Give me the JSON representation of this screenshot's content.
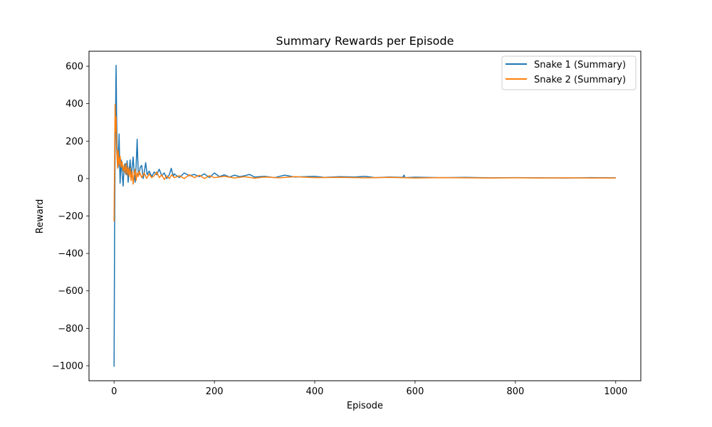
{
  "chart_data": {
    "type": "line",
    "title": "Summary Rewards per Episode",
    "xlabel": "Episode",
    "ylabel": "Reward",
    "xlim": [
      -50,
      1050
    ],
    "ylim": [
      -1080,
      680
    ],
    "xticks": [
      0,
      200,
      400,
      600,
      800,
      1000
    ],
    "yticks": [
      -1000,
      -800,
      -600,
      -400,
      -200,
      0,
      200,
      400,
      600
    ],
    "ytick_labels": [
      "−1000",
      "−800",
      "−600",
      "−400",
      "−200",
      "0",
      "200",
      "400",
      "600"
    ],
    "grid": false,
    "legend_position": "top-right",
    "series": [
      {
        "name": "Snake 1 (Summary)",
        "color": "#1f77b4",
        "points": [
          [
            0,
            -1005
          ],
          [
            1,
            -300
          ],
          [
            2,
            150
          ],
          [
            3,
            350
          ],
          [
            4,
            605
          ],
          [
            5,
            340
          ],
          [
            6,
            180
          ],
          [
            7,
            120
          ],
          [
            8,
            60
          ],
          [
            9,
            140
          ],
          [
            10,
            238
          ],
          [
            11,
            90
          ],
          [
            12,
            -25
          ],
          [
            14,
            100
          ],
          [
            16,
            30
          ],
          [
            18,
            -40
          ],
          [
            20,
            60
          ],
          [
            22,
            80
          ],
          [
            24,
            20
          ],
          [
            26,
            95
          ],
          [
            28,
            -20
          ],
          [
            30,
            40
          ],
          [
            32,
            100
          ],
          [
            34,
            10
          ],
          [
            36,
            60
          ],
          [
            38,
            115
          ],
          [
            40,
            30
          ],
          [
            42,
            -20
          ],
          [
            44,
            70
          ],
          [
            46,
            210
          ],
          [
            48,
            40
          ],
          [
            50,
            20
          ],
          [
            52,
            60
          ],
          [
            55,
            70
          ],
          [
            58,
            0
          ],
          [
            60,
            30
          ],
          [
            63,
            85
          ],
          [
            66,
            20
          ],
          [
            70,
            40
          ],
          [
            75,
            10
          ],
          [
            80,
            35
          ],
          [
            85,
            20
          ],
          [
            90,
            50
          ],
          [
            95,
            15
          ],
          [
            100,
            30
          ],
          [
            105,
            0
          ],
          [
            110,
            20
          ],
          [
            114,
            55
          ],
          [
            118,
            10
          ],
          [
            120,
            25
          ],
          [
            130,
            5
          ],
          [
            140,
            30
          ],
          [
            150,
            15
          ],
          [
            160,
            22
          ],
          [
            170,
            10
          ],
          [
            180,
            25
          ],
          [
            190,
            5
          ],
          [
            200,
            30
          ],
          [
            210,
            10
          ],
          [
            220,
            20
          ],
          [
            230,
            8
          ],
          [
            240,
            18
          ],
          [
            250,
            10
          ],
          [
            260,
            15
          ],
          [
            270,
            22
          ],
          [
            280,
            8
          ],
          [
            300,
            12
          ],
          [
            320,
            5
          ],
          [
            340,
            18
          ],
          [
            360,
            8
          ],
          [
            380,
            10
          ],
          [
            400,
            12
          ],
          [
            420,
            6
          ],
          [
            450,
            10
          ],
          [
            480,
            8
          ],
          [
            500,
            12
          ],
          [
            520,
            5
          ],
          [
            550,
            8
          ],
          [
            575,
            6
          ],
          [
            578,
            18
          ],
          [
            580,
            5
          ],
          [
            600,
            7
          ],
          [
            650,
            5
          ],
          [
            700,
            6
          ],
          [
            750,
            4
          ],
          [
            800,
            5
          ],
          [
            850,
            4
          ],
          [
            900,
            3
          ],
          [
            950,
            5
          ],
          [
            1000,
            4
          ]
        ]
      },
      {
        "name": "Snake 2 (Summary)",
        "color": "#ff7f0e",
        "points": [
          [
            0,
            -230
          ],
          [
            1,
            100
          ],
          [
            2,
            395
          ],
          [
            3,
            250
          ],
          [
            4,
            330
          ],
          [
            5,
            160
          ],
          [
            6,
            110
          ],
          [
            7,
            55
          ],
          [
            8,
            150
          ],
          [
            10,
            70
          ],
          [
            12,
            120
          ],
          [
            14,
            60
          ],
          [
            16,
            90
          ],
          [
            18,
            40
          ],
          [
            20,
            70
          ],
          [
            22,
            30
          ],
          [
            24,
            80
          ],
          [
            26,
            20
          ],
          [
            28,
            60
          ],
          [
            30,
            10
          ],
          [
            32,
            55
          ],
          [
            34,
            -10
          ],
          [
            36,
            40
          ],
          [
            38,
            -30
          ],
          [
            40,
            20
          ],
          [
            42,
            50
          ],
          [
            44,
            -10
          ],
          [
            46,
            30
          ],
          [
            48,
            10
          ],
          [
            50,
            40
          ],
          [
            55,
            5
          ],
          [
            60,
            30
          ],
          [
            65,
            0
          ],
          [
            70,
            25
          ],
          [
            75,
            5
          ],
          [
            80,
            15
          ],
          [
            85,
            35
          ],
          [
            90,
            5
          ],
          [
            95,
            20
          ],
          [
            100,
            -5
          ],
          [
            105,
            15
          ],
          [
            110,
            0
          ],
          [
            115,
            20
          ],
          [
            120,
            5
          ],
          [
            130,
            15
          ],
          [
            140,
            0
          ],
          [
            150,
            20
          ],
          [
            160,
            5
          ],
          [
            170,
            18
          ],
          [
            180,
            0
          ],
          [
            190,
            15
          ],
          [
            200,
            5
          ],
          [
            220,
            12
          ],
          [
            240,
            3
          ],
          [
            260,
            10
          ],
          [
            280,
            2
          ],
          [
            300,
            8
          ],
          [
            330,
            4
          ],
          [
            360,
            10
          ],
          [
            400,
            5
          ],
          [
            450,
            6
          ],
          [
            500,
            4
          ],
          [
            550,
            6
          ],
          [
            600,
            3
          ],
          [
            650,
            5
          ],
          [
            700,
            4
          ],
          [
            750,
            3
          ],
          [
            800,
            4
          ],
          [
            850,
            3
          ],
          [
            900,
            4
          ],
          [
            950,
            3
          ],
          [
            1000,
            3
          ]
        ]
      }
    ]
  }
}
